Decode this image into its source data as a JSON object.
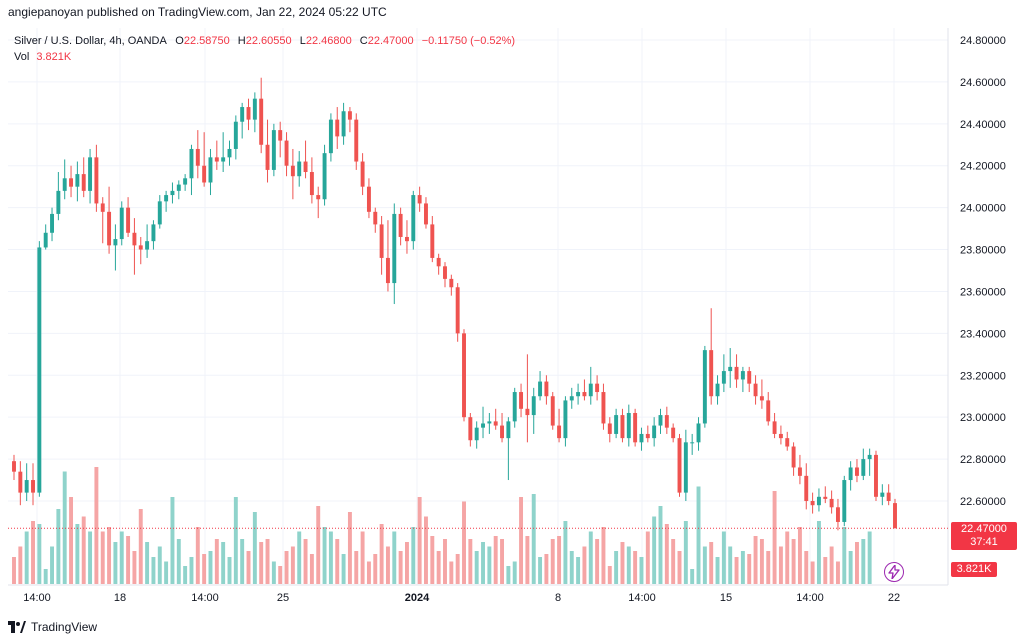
{
  "publish_line": "angiepanoyan published on TradingView.com, Jan 22, 2024 05:22 UTC",
  "legend": {
    "symbol": "Silver / U.S. Dollar, 4h, OANDA",
    "o_label": "O",
    "o_value": "22.58750",
    "h_label": "H",
    "h_value": "22.60550",
    "l_label": "L",
    "l_value": "22.46800",
    "c_label": "C",
    "c_value": "22.47000",
    "change": "−0.11750 (−0.52%)",
    "vol_label": "Vol",
    "vol_value": "3.821K"
  },
  "price_badge": {
    "price": "22.47000",
    "countdown": "37:41"
  },
  "volume_badge": "3.821K",
  "footer_brand": "TradingView",
  "colors": {
    "up": "#26a69a",
    "down": "#ef5350",
    "up_vol": "#8fd3cb",
    "down_vol": "#f5a5a5",
    "grid": "#f0f3fa",
    "last_price_line": "#f23645"
  },
  "chart_data": {
    "type": "candlestick",
    "title": "",
    "y_axis": {
      "ylim": [
        22.4,
        24.85
      ],
      "ticks": [
        "24.80000",
        "24.60000",
        "24.40000",
        "24.20000",
        "24.00000",
        "23.80000",
        "23.60000",
        "23.40000",
        "23.20000",
        "23.00000",
        "22.80000",
        "22.60000"
      ],
      "position": "right"
    },
    "x_axis": {
      "labels": [
        "14:00",
        "18",
        "14:00",
        "25",
        "2024",
        "8",
        "14:00",
        "15",
        "14:00",
        "22"
      ],
      "bold_label": "2024"
    },
    "grid": true,
    "last_price": 22.47,
    "candles": [
      {
        "o": 22.79,
        "h": 22.82,
        "l": 22.7,
        "c": 22.74
      },
      {
        "o": 22.74,
        "h": 22.79,
        "l": 22.58,
        "c": 22.64
      },
      {
        "o": 22.64,
        "h": 22.78,
        "l": 22.6,
        "c": 22.7
      },
      {
        "o": 22.7,
        "h": 22.78,
        "l": 22.58,
        "c": 22.64
      },
      {
        "o": 22.64,
        "h": 23.84,
        "l": 22.62,
        "c": 23.81
      },
      {
        "o": 23.81,
        "h": 23.92,
        "l": 23.8,
        "c": 23.88
      },
      {
        "o": 23.88,
        "h": 24.0,
        "l": 23.84,
        "c": 23.97
      },
      {
        "o": 23.97,
        "h": 24.17,
        "l": 23.94,
        "c": 24.08
      },
      {
        "o": 24.08,
        "h": 24.23,
        "l": 24.04,
        "c": 24.14
      },
      {
        "o": 24.14,
        "h": 24.2,
        "l": 24.05,
        "c": 24.1
      },
      {
        "o": 24.1,
        "h": 24.22,
        "l": 24.03,
        "c": 24.16
      },
      {
        "o": 24.16,
        "h": 24.24,
        "l": 24.05,
        "c": 24.08
      },
      {
        "o": 24.08,
        "h": 24.28,
        "l": 24.02,
        "c": 24.24
      },
      {
        "o": 24.24,
        "h": 24.3,
        "l": 23.98,
        "c": 24.02
      },
      {
        "o": 24.02,
        "h": 24.05,
        "l": 23.83,
        "c": 23.98
      },
      {
        "o": 23.98,
        "h": 24.1,
        "l": 23.78,
        "c": 23.82
      },
      {
        "o": 23.82,
        "h": 23.92,
        "l": 23.7,
        "c": 23.85
      },
      {
        "o": 23.85,
        "h": 24.03,
        "l": 23.82,
        "c": 24.0
      },
      {
        "o": 24.0,
        "h": 24.05,
        "l": 23.86,
        "c": 23.88
      },
      {
        "o": 23.88,
        "h": 23.95,
        "l": 23.68,
        "c": 23.82
      },
      {
        "o": 23.82,
        "h": 23.86,
        "l": 23.73,
        "c": 23.8
      },
      {
        "o": 23.8,
        "h": 23.92,
        "l": 23.76,
        "c": 23.84
      },
      {
        "o": 23.84,
        "h": 23.94,
        "l": 23.8,
        "c": 23.92
      },
      {
        "o": 23.92,
        "h": 24.06,
        "l": 23.9,
        "c": 24.03
      },
      {
        "o": 24.03,
        "h": 24.08,
        "l": 23.98,
        "c": 24.06
      },
      {
        "o": 24.06,
        "h": 24.12,
        "l": 24.02,
        "c": 24.08
      },
      {
        "o": 24.08,
        "h": 24.13,
        "l": 24.04,
        "c": 24.11
      },
      {
        "o": 24.11,
        "h": 24.16,
        "l": 24.08,
        "c": 24.14
      },
      {
        "o": 24.14,
        "h": 24.3,
        "l": 24.06,
        "c": 24.28
      },
      {
        "o": 24.28,
        "h": 24.37,
        "l": 24.14,
        "c": 24.2
      },
      {
        "o": 24.2,
        "h": 24.36,
        "l": 24.1,
        "c": 24.12
      },
      {
        "o": 24.12,
        "h": 24.28,
        "l": 24.06,
        "c": 24.24
      },
      {
        "o": 24.24,
        "h": 24.32,
        "l": 24.18,
        "c": 24.22
      },
      {
        "o": 24.22,
        "h": 24.36,
        "l": 24.17,
        "c": 24.24
      },
      {
        "o": 24.24,
        "h": 24.32,
        "l": 24.2,
        "c": 24.28
      },
      {
        "o": 24.28,
        "h": 24.44,
        "l": 24.23,
        "c": 24.41
      },
      {
        "o": 24.41,
        "h": 24.5,
        "l": 24.33,
        "c": 24.48
      },
      {
        "o": 24.48,
        "h": 24.52,
        "l": 24.37,
        "c": 24.42
      },
      {
        "o": 24.42,
        "h": 24.55,
        "l": 24.36,
        "c": 24.52
      },
      {
        "o": 24.52,
        "h": 24.62,
        "l": 24.26,
        "c": 24.3
      },
      {
        "o": 24.3,
        "h": 24.42,
        "l": 24.12,
        "c": 24.18
      },
      {
        "o": 24.18,
        "h": 24.4,
        "l": 24.15,
        "c": 24.37
      },
      {
        "o": 24.37,
        "h": 24.41,
        "l": 24.24,
        "c": 24.32
      },
      {
        "o": 24.32,
        "h": 24.36,
        "l": 24.15,
        "c": 24.2
      },
      {
        "o": 24.2,
        "h": 24.28,
        "l": 24.04,
        "c": 24.15
      },
      {
        "o": 24.15,
        "h": 24.27,
        "l": 24.1,
        "c": 24.22
      },
      {
        "o": 24.22,
        "h": 24.32,
        "l": 24.14,
        "c": 24.17
      },
      {
        "o": 24.17,
        "h": 24.24,
        "l": 24.02,
        "c": 24.06
      },
      {
        "o": 24.06,
        "h": 24.1,
        "l": 23.95,
        "c": 24.04
      },
      {
        "o": 24.04,
        "h": 24.3,
        "l": 24.01,
        "c": 24.26
      },
      {
        "o": 24.26,
        "h": 24.45,
        "l": 24.22,
        "c": 24.42
      },
      {
        "o": 24.42,
        "h": 24.48,
        "l": 24.28,
        "c": 24.34
      },
      {
        "o": 24.34,
        "h": 24.5,
        "l": 24.3,
        "c": 24.46
      },
      {
        "o": 24.46,
        "h": 24.48,
        "l": 24.36,
        "c": 24.42
      },
      {
        "o": 24.42,
        "h": 24.45,
        "l": 24.18,
        "c": 24.22
      },
      {
        "o": 24.22,
        "h": 24.26,
        "l": 24.06,
        "c": 24.1
      },
      {
        "o": 24.1,
        "h": 24.14,
        "l": 23.95,
        "c": 23.98
      },
      {
        "o": 23.98,
        "h": 24.0,
        "l": 23.88,
        "c": 23.92
      },
      {
        "o": 23.92,
        "h": 23.96,
        "l": 23.68,
        "c": 23.76
      },
      {
        "o": 23.76,
        "h": 23.94,
        "l": 23.6,
        "c": 23.64
      },
      {
        "o": 23.64,
        "h": 24.02,
        "l": 23.54,
        "c": 23.97
      },
      {
        "o": 23.97,
        "h": 24.0,
        "l": 23.82,
        "c": 23.86
      },
      {
        "o": 23.86,
        "h": 23.94,
        "l": 23.78,
        "c": 23.84
      },
      {
        "o": 23.84,
        "h": 24.08,
        "l": 23.8,
        "c": 24.06
      },
      {
        "o": 24.06,
        "h": 24.1,
        "l": 23.98,
        "c": 24.02
      },
      {
        "o": 24.02,
        "h": 24.05,
        "l": 23.9,
        "c": 23.92
      },
      {
        "o": 23.92,
        "h": 23.96,
        "l": 23.74,
        "c": 23.76
      },
      {
        "o": 23.76,
        "h": 23.78,
        "l": 23.68,
        "c": 23.72
      },
      {
        "o": 23.72,
        "h": 23.74,
        "l": 23.62,
        "c": 23.66
      },
      {
        "o": 23.66,
        "h": 23.68,
        "l": 23.58,
        "c": 23.62
      },
      {
        "o": 23.62,
        "h": 23.64,
        "l": 23.36,
        "c": 23.4
      },
      {
        "o": 23.4,
        "h": 23.42,
        "l": 22.98,
        "c": 23.0
      },
      {
        "o": 23.0,
        "h": 23.02,
        "l": 22.86,
        "c": 22.89
      },
      {
        "o": 22.89,
        "h": 22.98,
        "l": 22.85,
        "c": 22.95
      },
      {
        "o": 22.95,
        "h": 23.05,
        "l": 22.9,
        "c": 22.97
      },
      {
        "o": 22.97,
        "h": 23.02,
        "l": 22.92,
        "c": 22.98
      },
      {
        "o": 22.98,
        "h": 23.04,
        "l": 22.94,
        "c": 22.96
      },
      {
        "o": 22.96,
        "h": 23.02,
        "l": 22.88,
        "c": 22.9
      },
      {
        "o": 22.9,
        "h": 23.0,
        "l": 22.7,
        "c": 22.98
      },
      {
        "o": 22.98,
        "h": 23.14,
        "l": 22.95,
        "c": 23.12
      },
      {
        "o": 23.12,
        "h": 23.16,
        "l": 23.0,
        "c": 23.04
      },
      {
        "o": 23.04,
        "h": 23.3,
        "l": 22.88,
        "c": 23.01
      },
      {
        "o": 23.01,
        "h": 23.14,
        "l": 22.92,
        "c": 23.1
      },
      {
        "o": 23.1,
        "h": 23.22,
        "l": 23.08,
        "c": 23.17
      },
      {
        "o": 23.17,
        "h": 23.2,
        "l": 23.06,
        "c": 23.1
      },
      {
        "o": 23.1,
        "h": 23.12,
        "l": 22.94,
        "c": 22.96
      },
      {
        "o": 22.96,
        "h": 23.04,
        "l": 22.88,
        "c": 22.9
      },
      {
        "o": 22.9,
        "h": 23.1,
        "l": 22.86,
        "c": 23.08
      },
      {
        "o": 23.08,
        "h": 23.14,
        "l": 23.04,
        "c": 23.1
      },
      {
        "o": 23.1,
        "h": 23.16,
        "l": 23.06,
        "c": 23.12
      },
      {
        "o": 23.12,
        "h": 23.18,
        "l": 23.08,
        "c": 23.1
      },
      {
        "o": 23.1,
        "h": 23.24,
        "l": 23.06,
        "c": 23.16
      },
      {
        "o": 23.16,
        "h": 23.2,
        "l": 23.08,
        "c": 23.12
      },
      {
        "o": 23.12,
        "h": 23.16,
        "l": 22.94,
        "c": 22.97
      },
      {
        "o": 22.97,
        "h": 23.0,
        "l": 22.88,
        "c": 22.92
      },
      {
        "o": 22.92,
        "h": 23.04,
        "l": 22.9,
        "c": 23.01
      },
      {
        "o": 23.01,
        "h": 23.04,
        "l": 22.88,
        "c": 22.9
      },
      {
        "o": 22.9,
        "h": 23.06,
        "l": 22.86,
        "c": 23.02
      },
      {
        "o": 23.02,
        "h": 23.04,
        "l": 22.86,
        "c": 22.88
      },
      {
        "o": 22.88,
        "h": 22.95,
        "l": 22.84,
        "c": 22.92
      },
      {
        "o": 22.92,
        "h": 22.96,
        "l": 22.88,
        "c": 22.9
      },
      {
        "o": 22.9,
        "h": 23.0,
        "l": 22.86,
        "c": 22.96
      },
      {
        "o": 22.96,
        "h": 23.04,
        "l": 22.92,
        "c": 23.01
      },
      {
        "o": 23.01,
        "h": 23.05,
        "l": 22.92,
        "c": 22.95
      },
      {
        "o": 22.95,
        "h": 22.97,
        "l": 22.88,
        "c": 22.9
      },
      {
        "o": 22.9,
        "h": 22.92,
        "l": 22.62,
        "c": 22.64
      },
      {
        "o": 22.64,
        "h": 22.94,
        "l": 22.6,
        "c": 22.88
      },
      {
        "o": 22.88,
        "h": 22.92,
        "l": 22.82,
        "c": 22.88
      },
      {
        "o": 22.88,
        "h": 23.0,
        "l": 22.84,
        "c": 22.97
      },
      {
        "o": 22.97,
        "h": 23.34,
        "l": 22.95,
        "c": 23.32
      },
      {
        "o": 23.32,
        "h": 23.52,
        "l": 23.06,
        "c": 23.1
      },
      {
        "o": 23.1,
        "h": 23.2,
        "l": 23.06,
        "c": 23.16
      },
      {
        "o": 23.16,
        "h": 23.3,
        "l": 23.12,
        "c": 23.22
      },
      {
        "o": 23.22,
        "h": 23.33,
        "l": 23.14,
        "c": 23.24
      },
      {
        "o": 23.24,
        "h": 23.3,
        "l": 23.14,
        "c": 23.18
      },
      {
        "o": 23.18,
        "h": 23.24,
        "l": 23.12,
        "c": 23.22
      },
      {
        "o": 23.22,
        "h": 23.24,
        "l": 23.12,
        "c": 23.16
      },
      {
        "o": 23.16,
        "h": 23.2,
        "l": 23.06,
        "c": 23.1
      },
      {
        "o": 23.1,
        "h": 23.18,
        "l": 23.04,
        "c": 23.08
      },
      {
        "o": 23.08,
        "h": 23.12,
        "l": 22.96,
        "c": 22.98
      },
      {
        "o": 22.98,
        "h": 23.02,
        "l": 22.9,
        "c": 22.92
      },
      {
        "o": 22.92,
        "h": 22.96,
        "l": 22.87,
        "c": 22.9
      },
      {
        "o": 22.9,
        "h": 22.93,
        "l": 22.84,
        "c": 22.86
      },
      {
        "o": 22.86,
        "h": 22.88,
        "l": 22.72,
        "c": 22.76
      },
      {
        "o": 22.76,
        "h": 22.82,
        "l": 22.68,
        "c": 22.72
      },
      {
        "o": 22.72,
        "h": 22.78,
        "l": 22.56,
        "c": 22.6
      },
      {
        "o": 22.6,
        "h": 22.64,
        "l": 22.54,
        "c": 22.58
      },
      {
        "o": 22.58,
        "h": 22.66,
        "l": 22.55,
        "c": 22.62
      },
      {
        "o": 22.62,
        "h": 22.67,
        "l": 22.59,
        "c": 22.61
      },
      {
        "o": 22.61,
        "h": 22.65,
        "l": 22.54,
        "c": 22.57
      },
      {
        "o": 22.57,
        "h": 22.61,
        "l": 22.46,
        "c": 22.5
      },
      {
        "o": 22.5,
        "h": 22.72,
        "l": 22.48,
        "c": 22.7
      },
      {
        "o": 22.7,
        "h": 22.79,
        "l": 22.65,
        "c": 22.76
      },
      {
        "o": 22.76,
        "h": 22.8,
        "l": 22.69,
        "c": 22.72
      },
      {
        "o": 22.72,
        "h": 22.85,
        "l": 22.7,
        "c": 22.8
      },
      {
        "o": 22.8,
        "h": 22.85,
        "l": 22.72,
        "c": 22.82
      },
      {
        "o": 22.82,
        "h": 22.84,
        "l": 22.6,
        "c": 22.62
      },
      {
        "o": 22.62,
        "h": 22.68,
        "l": 22.58,
        "c": 22.64
      },
      {
        "o": 22.64,
        "h": 22.68,
        "l": 22.58,
        "c": 22.6
      },
      {
        "o": 22.59,
        "h": 22.61,
        "l": 22.47,
        "c": 22.47
      }
    ],
    "volume": [
      0.18,
      0.25,
      0.35,
      0.42,
      0.4,
      0.1,
      0.25,
      0.5,
      0.75,
      0.58,
      0.4,
      0.45,
      0.35,
      0.78,
      0.35,
      0.38,
      0.28,
      0.35,
      0.32,
      0.22,
      0.5,
      0.28,
      0.18,
      0.25,
      0.15,
      0.58,
      0.3,
      0.12,
      0.18,
      0.38,
      0.2,
      0.22,
      0.3,
      0.28,
      0.18,
      0.58,
      0.3,
      0.22,
      0.48,
      0.28,
      0.3,
      0.15,
      0.12,
      0.22,
      0.25,
      0.35,
      0.3,
      0.2,
      0.52,
      0.38,
      0.35,
      0.3,
      0.2,
      0.48,
      0.22,
      0.35,
      0.15,
      0.2,
      0.4,
      0.25,
      0.35,
      0.22,
      0.28,
      0.38,
      0.58,
      0.45,
      0.32,
      0.22,
      0.3,
      0.15,
      0.2,
      0.55,
      0.3,
      0.22,
      0.28,
      0.25,
      0.32,
      0.3,
      0.12,
      0.15,
      0.58,
      0.32,
      0.6,
      0.18,
      0.2,
      0.3,
      0.32,
      0.42,
      0.22,
      0.18,
      0.25,
      0.35,
      0.3,
      0.38,
      0.12,
      0.22,
      0.28,
      0.25,
      0.22,
      0.18,
      0.35,
      0.45,
      0.52,
      0.4,
      0.3,
      0.22,
      0.42,
      0.1,
      0.65,
      0.25,
      0.28,
      0.18,
      0.35,
      0.25,
      0.18,
      0.22,
      0.2,
      0.32,
      0.3,
      0.22,
      0.62,
      0.25,
      0.35,
      0.3,
      0.38,
      0.22,
      0.15,
      0.42,
      0.18,
      0.25,
      0.15,
      0.38,
      0.22,
      0.28,
      0.3,
      0.35
    ]
  }
}
